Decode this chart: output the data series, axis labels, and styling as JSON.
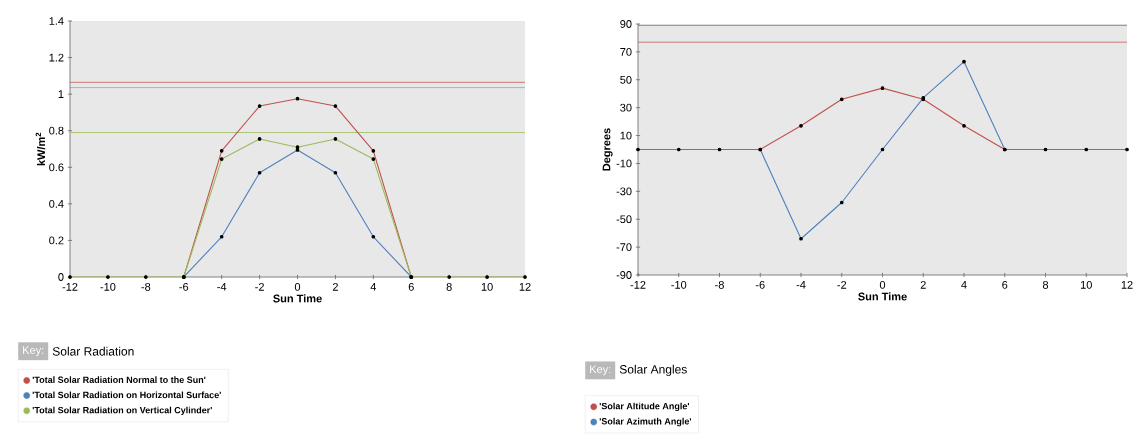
{
  "chart_data": [
    {
      "type": "line",
      "xlabel": "Sun Time",
      "ylabel": "kW/m$^{2}$",
      "legend_title": "Solar Radiation",
      "annotations": [
        "Key:"
      ],
      "x": [
        -12,
        -10,
        -8,
        -6,
        -4,
        -2,
        0,
        2,
        4,
        6,
        8,
        10,
        12
      ],
      "series": [
        {
          "name": "'Total Solar Radiation Normal to the Sun'",
          "color": "#c0504d",
          "values": [
            null,
            null,
            null,
            0,
            0.69,
            0.935,
            0.975,
            0.935,
            0.69,
            0,
            null,
            null,
            null
          ]
        },
        {
          "name": "'Total Solar Radiation on Horizontal Surface'",
          "color": "#4f81bd",
          "values": [
            null,
            null,
            null,
            0,
            0.22,
            0.57,
            0.695,
            0.57,
            0.22,
            0,
            null,
            null,
            null
          ]
        },
        {
          "name": "'Total Solar Radiation on Vertical Cylinder'",
          "color": "#9bbb59",
          "values": [
            0,
            0,
            0,
            0,
            0.645,
            0.755,
            0.71,
            0.755,
            0.645,
            0,
            0,
            0,
            0
          ]
        }
      ],
      "ref_lines": [
        {
          "axis": "y",
          "value": 1.065,
          "color": "#c0504d"
        },
        {
          "axis": "y",
          "value": 1.035,
          "color": "#4f81bd"
        },
        {
          "axis": "y",
          "value": 0.79,
          "color": "#9bbb59"
        }
      ],
      "xlim": [
        -12,
        12
      ],
      "ylim": [
        0,
        1.4
      ],
      "xticks": [
        -12,
        -10,
        -8,
        -6,
        -4,
        -2,
        0,
        2,
        4,
        6,
        8,
        10,
        12
      ],
      "yticks": [
        0,
        0.2,
        0.4,
        0.6,
        0.8,
        1,
        1.2,
        1.4
      ],
      "marker": "circle",
      "line_style": "solid",
      "legend": "bottom",
      "grid": false
    },
    {
      "type": "line",
      "xlabel": "Sun Time",
      "ylabel": "Degrees",
      "legend_title": "Solar Angles",
      "annotations": [
        "Key:"
      ],
      "x": [
        -12,
        -10,
        -8,
        -6,
        -4,
        -2,
        0,
        2,
        4,
        6,
        8,
        10,
        12
      ],
      "series": [
        {
          "name": "'Solar Altitude Angle'",
          "color": "#c0504d",
          "values": [
            null,
            null,
            null,
            0,
            17,
            36,
            44,
            36,
            17,
            0,
            null,
            null,
            null
          ]
        },
        {
          "name": "'Solar Azimuth Angle'",
          "color": "#4f81bd",
          "values": [
            0,
            0,
            0,
            0,
            -64,
            -38,
            0,
            37,
            63,
            0,
            0,
            0,
            0
          ]
        }
      ],
      "ref_lines": [
        {
          "axis": "y",
          "value": 89,
          "color": "#4f81bd"
        },
        {
          "axis": "y",
          "value": 77,
          "color": "#c0504d"
        }
      ],
      "xlim": [
        -12,
        12
      ],
      "ylim": [
        -90,
        90
      ],
      "xticks": [
        -12,
        -10,
        -8,
        -6,
        -4,
        -2,
        0,
        2,
        4,
        6,
        8,
        10,
        12
      ],
      "yticks": [
        -90,
        -70,
        -50,
        -30,
        -10,
        10,
        30,
        50,
        70,
        90
      ],
      "marker": "circle",
      "line_style": "solid",
      "legend": "bottom",
      "grid": false
    }
  ]
}
